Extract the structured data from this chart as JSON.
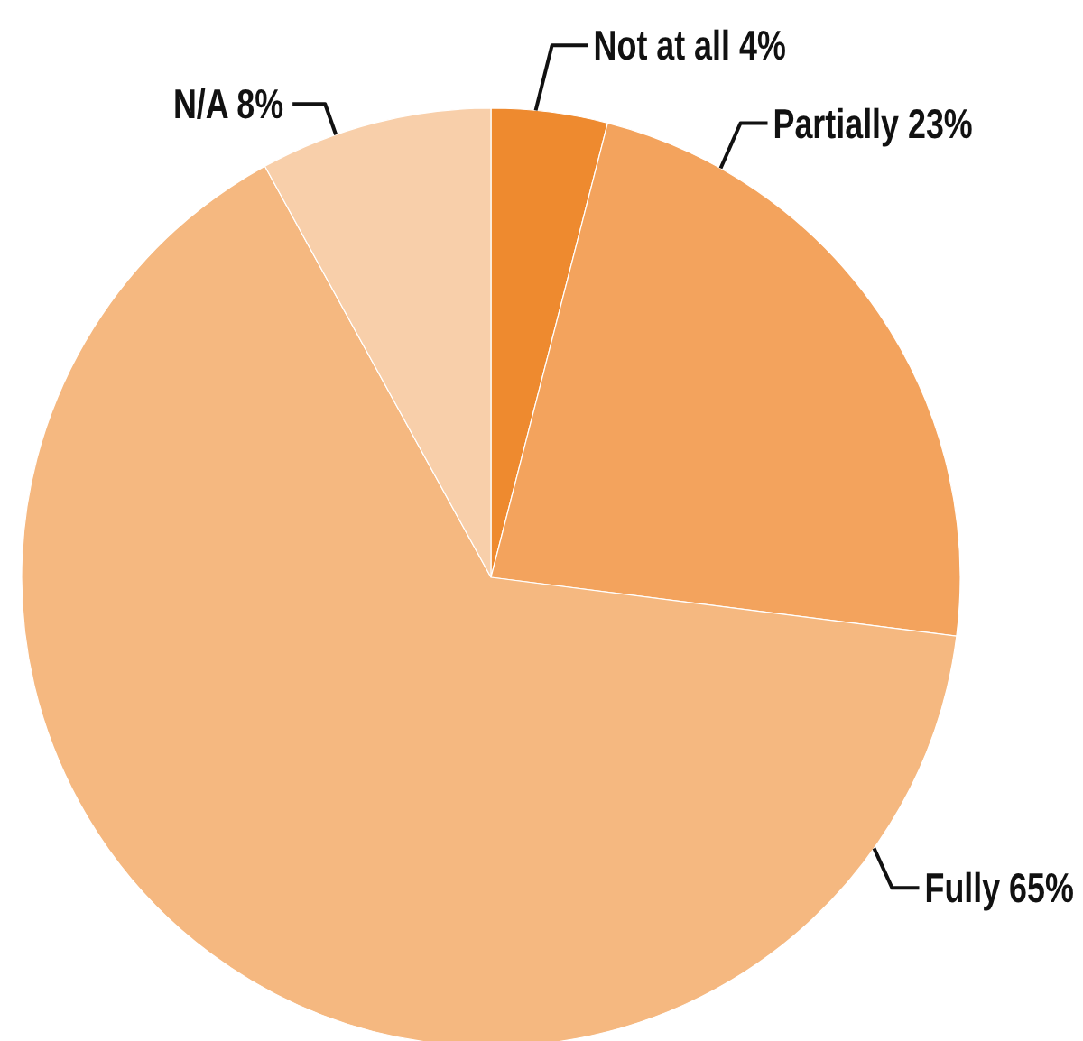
{
  "chart_data": {
    "type": "pie",
    "categories": [
      "Not at all",
      "Partially",
      "Fully",
      "N/A"
    ],
    "values": [
      4,
      23,
      65,
      8
    ],
    "colors": [
      "#ee8a2f",
      "#f3a35d",
      "#f5b880",
      "#f8cfaa"
    ],
    "value_labels": [
      "4%",
      "23%",
      "65%",
      "8%"
    ]
  }
}
